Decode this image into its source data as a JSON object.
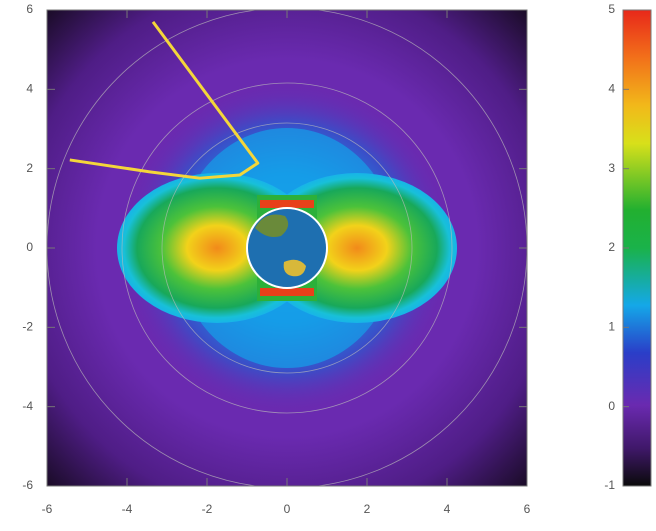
{
  "chart_data": {
    "type": "heatmap",
    "xlim": [
      -6,
      6
    ],
    "ylim": [
      -6,
      6
    ],
    "xticks": [
      -6,
      -4,
      -2,
      0,
      2,
      4,
      6
    ],
    "yticks": [
      -6,
      -4,
      -2,
      0,
      2,
      4,
      6
    ],
    "zlim": [
      -1,
      5
    ],
    "zticks": [
      -1,
      0,
      1,
      2,
      3,
      4,
      5
    ],
    "line": {
      "color": "#f4d63a",
      "x": [
        -3.35,
        -0.73,
        -1.18,
        -2.18,
        -3.43,
        -5.43
      ],
      "y": [
        5.7,
        2.14,
        1.84,
        1.76,
        1.92,
        2.22
      ]
    }
  }
}
